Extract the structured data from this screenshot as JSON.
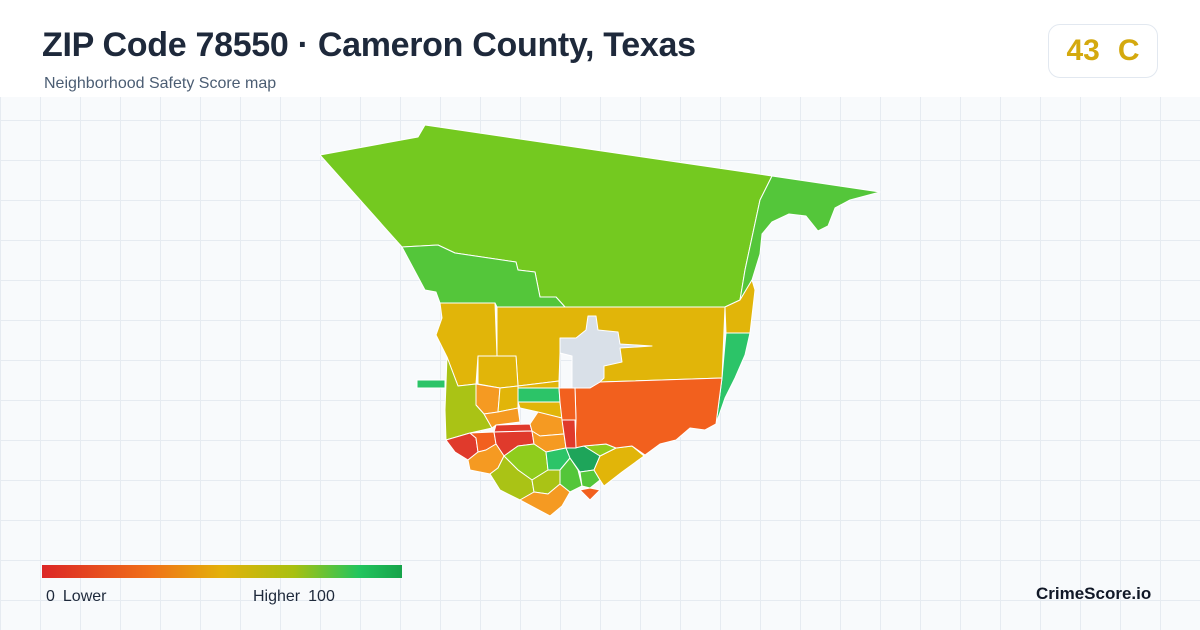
{
  "header": {
    "title": "ZIP Code 78550 · Cameron County, Texas",
    "subtitle": "Neighborhood Safety Score map"
  },
  "score": {
    "value": "43",
    "grade": "C",
    "color": "#d4a90e"
  },
  "legend": {
    "min": "0",
    "min_label": "Lower",
    "max_label": "Higher",
    "max": "100"
  },
  "brand": "CrimeScore.io",
  "colors": {
    "red": "#e03a2c",
    "orange_red": "#f2601e",
    "orange": "#f59a22",
    "yellow": "#e1b509",
    "olive": "#aac315",
    "yellow_green": "#8fcc1c",
    "lime": "#74c920",
    "green": "#54c63a",
    "bright_green": "#2cc468",
    "dark_green": "#1ea55a",
    "no_data": "#d9e0e8"
  }
}
